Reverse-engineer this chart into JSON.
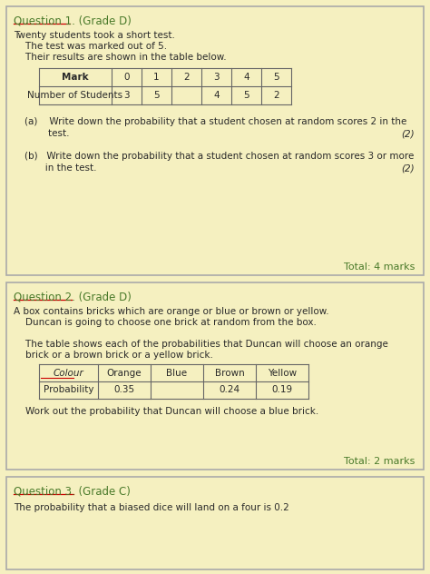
{
  "bg_color": "#f5f0c0",
  "box_bg": "#f5f0c0",
  "border_color": "#aaaaaa",
  "text_color": "#2a2a2a",
  "green_color": "#4a7a2a",
  "red_underline_color": "#cc0000",
  "q1_title": "Question 1. (Grade D)",
  "q1_intro": [
    "Twenty students took a short test.",
    "    The test was marked out of 5.",
    "    Their results are shown in the table below."
  ],
  "q1_table_headers": [
    "Mark",
    "0",
    "1",
    "2",
    "3",
    "4",
    "5"
  ],
  "q1_table_row": [
    "Number of Students",
    "3",
    "5",
    "",
    "4",
    "5",
    "2"
  ],
  "q1_a_line1": "(a)    Write down the probability that a student chosen at random scores 2 in the",
  "q1_a_line2": "        test.",
  "q1_a_marks": "(2)",
  "q1_b_line1": "(b)   Write down the probability that a student chosen at random scores 3 or more",
  "q1_b_line2": "       in the test.",
  "q1_b_marks": "(2)",
  "q1_total": "Total: 4 marks",
  "q2_title": "Question 2. (Grade D)",
  "q2_intro": [
    "A box contains bricks which are orange or blue or brown or yellow.",
    "    Duncan is going to choose one brick at random from the box.",
    "",
    "    The table shows each of the probabilities that Duncan will choose an orange",
    "    brick or a brown brick or a yellow brick."
  ],
  "q2_table_headers": [
    "Colour",
    "Orange",
    "Blue",
    "Brown",
    "Yellow"
  ],
  "q2_table_row": [
    "Probability",
    "0.35",
    "",
    "0.24",
    "0.19"
  ],
  "q2_question": "    Work out the probability that Duncan will choose a blue brick.",
  "q2_total": "Total: 2 marks",
  "q3_title": "Question 3. (Grade C)",
  "q3_intro": "The probability that a biased dice will land on a four is 0.2"
}
